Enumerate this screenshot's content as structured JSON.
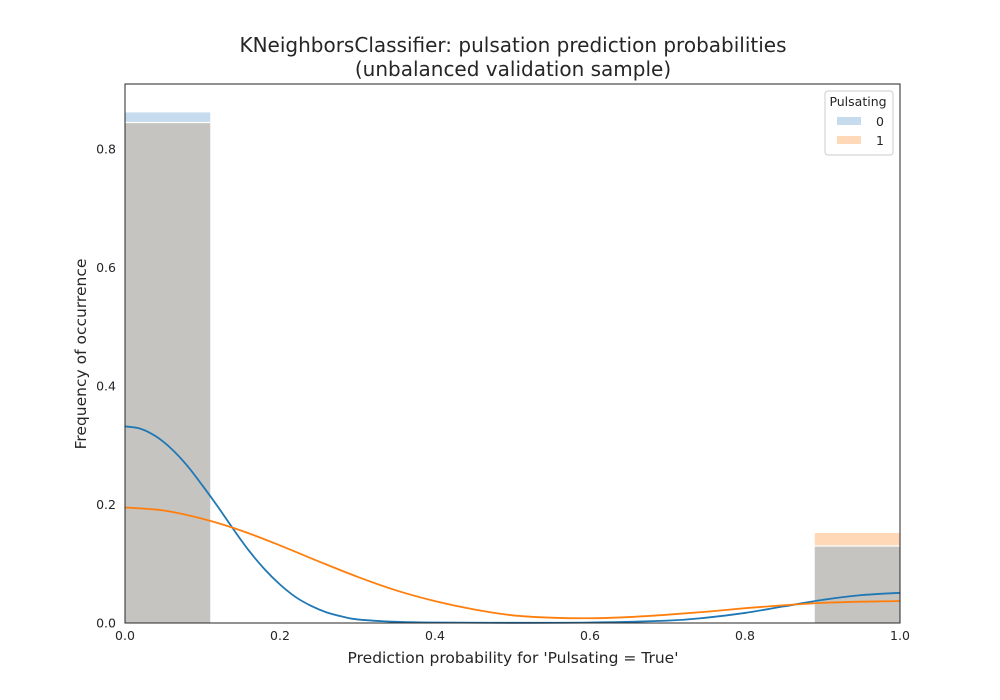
{
  "chart_data": {
    "type": "histogram_kde",
    "title": "KNeighborsClassifier: pulsation prediction probabilities",
    "subtitle": "(unbalanced validation sample)",
    "xlabel": "Prediction probability for 'Pulsating = True'",
    "ylabel": "Frequency of occurrence",
    "xlim": [
      0.0,
      1.0
    ],
    "ylim": [
      0.0,
      0.91
    ],
    "xticks": [
      "0.0",
      "0.2",
      "0.4",
      "0.6",
      "0.8",
      "1.0"
    ],
    "yticks": [
      "0.0",
      "0.2",
      "0.4",
      "0.6",
      "0.8"
    ],
    "grid": false,
    "legend": {
      "title": "Pulsating",
      "placement": "top-right"
    },
    "bins": [
      {
        "x0": 0.0,
        "x1": 0.11
      },
      {
        "x0": 0.89,
        "x1": 1.0
      }
    ],
    "series": [
      {
        "name": "0",
        "color": "#1f77b4",
        "bar_fill": "#c6dbee",
        "bar_values": [
          0.862,
          0.13
        ],
        "kde": [
          [
            0.0,
            0.332
          ],
          [
            0.02,
            0.328
          ],
          [
            0.04,
            0.315
          ],
          [
            0.06,
            0.294
          ],
          [
            0.08,
            0.266
          ],
          [
            0.1,
            0.232
          ],
          [
            0.12,
            0.196
          ],
          [
            0.14,
            0.158
          ],
          [
            0.16,
            0.122
          ],
          [
            0.18,
            0.091
          ],
          [
            0.2,
            0.065
          ],
          [
            0.22,
            0.044
          ],
          [
            0.24,
            0.029
          ],
          [
            0.26,
            0.018
          ],
          [
            0.28,
            0.011
          ],
          [
            0.3,
            0.006
          ],
          [
            0.35,
            0.002
          ],
          [
            0.4,
            0.0008
          ],
          [
            0.5,
            0.0003
          ],
          [
            0.6,
            0.0008
          ],
          [
            0.7,
            0.004
          ],
          [
            0.75,
            0.009
          ],
          [
            0.8,
            0.017
          ],
          [
            0.85,
            0.028
          ],
          [
            0.9,
            0.039
          ],
          [
            0.95,
            0.047
          ],
          [
            1.0,
            0.051
          ]
        ]
      },
      {
        "name": "1",
        "color": "#ff7f0e",
        "bar_fill": "#ffd8b8",
        "bar_values": [
          0.845,
          0.152
        ],
        "kde": [
          [
            0.0,
            0.195
          ],
          [
            0.05,
            0.19
          ],
          [
            0.1,
            0.176
          ],
          [
            0.15,
            0.156
          ],
          [
            0.2,
            0.131
          ],
          [
            0.25,
            0.104
          ],
          [
            0.3,
            0.078
          ],
          [
            0.35,
            0.055
          ],
          [
            0.4,
            0.037
          ],
          [
            0.45,
            0.023
          ],
          [
            0.5,
            0.013
          ],
          [
            0.55,
            0.009
          ],
          [
            0.6,
            0.008
          ],
          [
            0.65,
            0.01
          ],
          [
            0.7,
            0.014
          ],
          [
            0.75,
            0.019
          ],
          [
            0.8,
            0.025
          ],
          [
            0.85,
            0.03
          ],
          [
            0.9,
            0.034
          ],
          [
            0.95,
            0.036
          ],
          [
            1.0,
            0.037
          ]
        ]
      }
    ],
    "overlap_color": "#c6c4c0"
  }
}
